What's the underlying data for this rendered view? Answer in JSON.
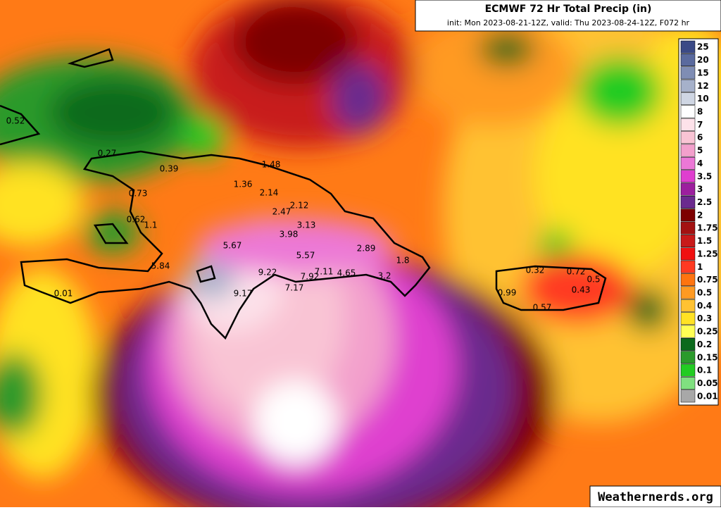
{
  "header": {
    "title": "ECMWF 72 Hr Total Precip (in)",
    "subtitle": "init: Mon 2023-08-21-12Z, valid: Thu 2023-08-24-12Z, F072 hr"
  },
  "colorbar": [
    {
      "label": "25",
      "color": "#3b4a86"
    },
    {
      "label": "20",
      "color": "#5a6a9e"
    },
    {
      "label": "15",
      "color": "#7f8db4"
    },
    {
      "label": "12",
      "color": "#a6b1ca"
    },
    {
      "label": "10",
      "color": "#cfd6e3"
    },
    {
      "label": "8",
      "color": "#ffffff"
    },
    {
      "label": "7",
      "color": "#fde2ea"
    },
    {
      "label": "6",
      "color": "#f9c4d4"
    },
    {
      "label": "5",
      "color": "#f3a0cc"
    },
    {
      "label": "4",
      "color": "#ec78d6"
    },
    {
      "label": "3.5",
      "color": "#df3fcf"
    },
    {
      "label": "3",
      "color": "#9c1f9e"
    },
    {
      "label": "2.5",
      "color": "#6b2a8e"
    },
    {
      "label": "2",
      "color": "#7d0000"
    },
    {
      "label": "1.75",
      "color": "#a31212"
    },
    {
      "label": "1.5",
      "color": "#c81a1a"
    },
    {
      "label": "1.25",
      "color": "#f01010"
    },
    {
      "label": "1",
      "color": "#ff3a22"
    },
    {
      "label": "0.75",
      "color": "#ff7410"
    },
    {
      "label": "0.5",
      "color": "#ff9a22"
    },
    {
      "label": "0.4",
      "color": "#ffc232"
    },
    {
      "label": "0.3",
      "color": "#ffe224"
    },
    {
      "label": "0.25",
      "color": "#ffff55"
    },
    {
      "label": "0.2",
      "color": "#0b6a1c"
    },
    {
      "label": "0.15",
      "color": "#2b9a2b"
    },
    {
      "label": "0.1",
      "color": "#22cc22"
    },
    {
      "label": "0.05",
      "color": "#80e080"
    },
    {
      "label": "0.01",
      "color": "#a8a8a8"
    }
  ],
  "stations": [
    "0.52",
    "0.27",
    "0.39",
    "1.48",
    "0.73",
    "1.36",
    "2.14",
    "0.62",
    "1.1",
    "2.47",
    "2.12",
    "3.13",
    "3.98",
    "5.67",
    "5.57",
    "2.89",
    "1.8",
    "5.84",
    "9.22",
    "7.92",
    "7.11",
    "4.65",
    "3.2",
    "0.01",
    "9.17",
    "7.17",
    "0.32",
    "0.72",
    "0.5",
    "0.99",
    "0.43",
    "0.57"
  ],
  "watermark": "Weathernerds.org"
}
